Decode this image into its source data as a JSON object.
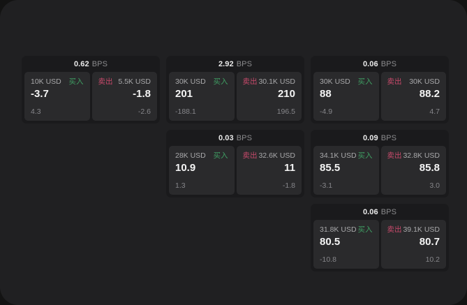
{
  "colors": {
    "buy_accent": "#3f9e63",
    "sell_accent": "#c6496a",
    "window_bg": "#202022",
    "card_bg": "#1a1a1c",
    "panel_bg": "#2a2a2c"
  },
  "cards": [
    {
      "row": 1,
      "col": 1,
      "bps_value": "0.62",
      "bps_unit": "BPS",
      "buy": {
        "size": "10K USD",
        "side_label": "买入",
        "price": "-3.7",
        "delta": "4.3"
      },
      "sell": {
        "side_label": "卖出",
        "size": "5.5K USD",
        "price": "-1.8",
        "delta": "-2.6"
      }
    },
    {
      "row": 1,
      "col": 2,
      "bps_value": "2.92",
      "bps_unit": "BPS",
      "buy": {
        "size": "30K USD",
        "side_label": "买入",
        "price": "201",
        "delta": "-188.1"
      },
      "sell": {
        "side_label": "卖出",
        "size": "30.1K USD",
        "price": "210",
        "delta": "196.5"
      }
    },
    {
      "row": 1,
      "col": 3,
      "bps_value": "0.06",
      "bps_unit": "BPS",
      "buy": {
        "size": "30K USD",
        "side_label": "买入",
        "price": "88",
        "delta": "-4.9"
      },
      "sell": {
        "side_label": "卖出",
        "size": "30K USD",
        "price": "88.2",
        "delta": "4.7"
      }
    },
    {
      "row": 2,
      "col": 2,
      "bps_value": "0.03",
      "bps_unit": "BPS",
      "buy": {
        "size": "28K USD",
        "side_label": "买入",
        "price": "10.9",
        "delta": "1.3"
      },
      "sell": {
        "side_label": "卖出",
        "size": "32.6K USD",
        "price": "11",
        "delta": "-1.8"
      }
    },
    {
      "row": 2,
      "col": 3,
      "bps_value": "0.09",
      "bps_unit": "BPS",
      "buy": {
        "size": "34.1K USD",
        "side_label": "买入",
        "price": "85.5",
        "delta": "-3.1"
      },
      "sell": {
        "side_label": "卖出",
        "size": "32.8K USD",
        "price": "85.8",
        "delta": "3.0"
      }
    },
    {
      "row": 3,
      "col": 3,
      "bps_value": "0.06",
      "bps_unit": "BPS",
      "buy": {
        "size": "31.8K USD",
        "side_label": "买入",
        "price": "80.5",
        "delta": "-10.8"
      },
      "sell": {
        "side_label": "卖出",
        "size": "39.1K USD",
        "price": "80.7",
        "delta": "10.2"
      }
    }
  ]
}
